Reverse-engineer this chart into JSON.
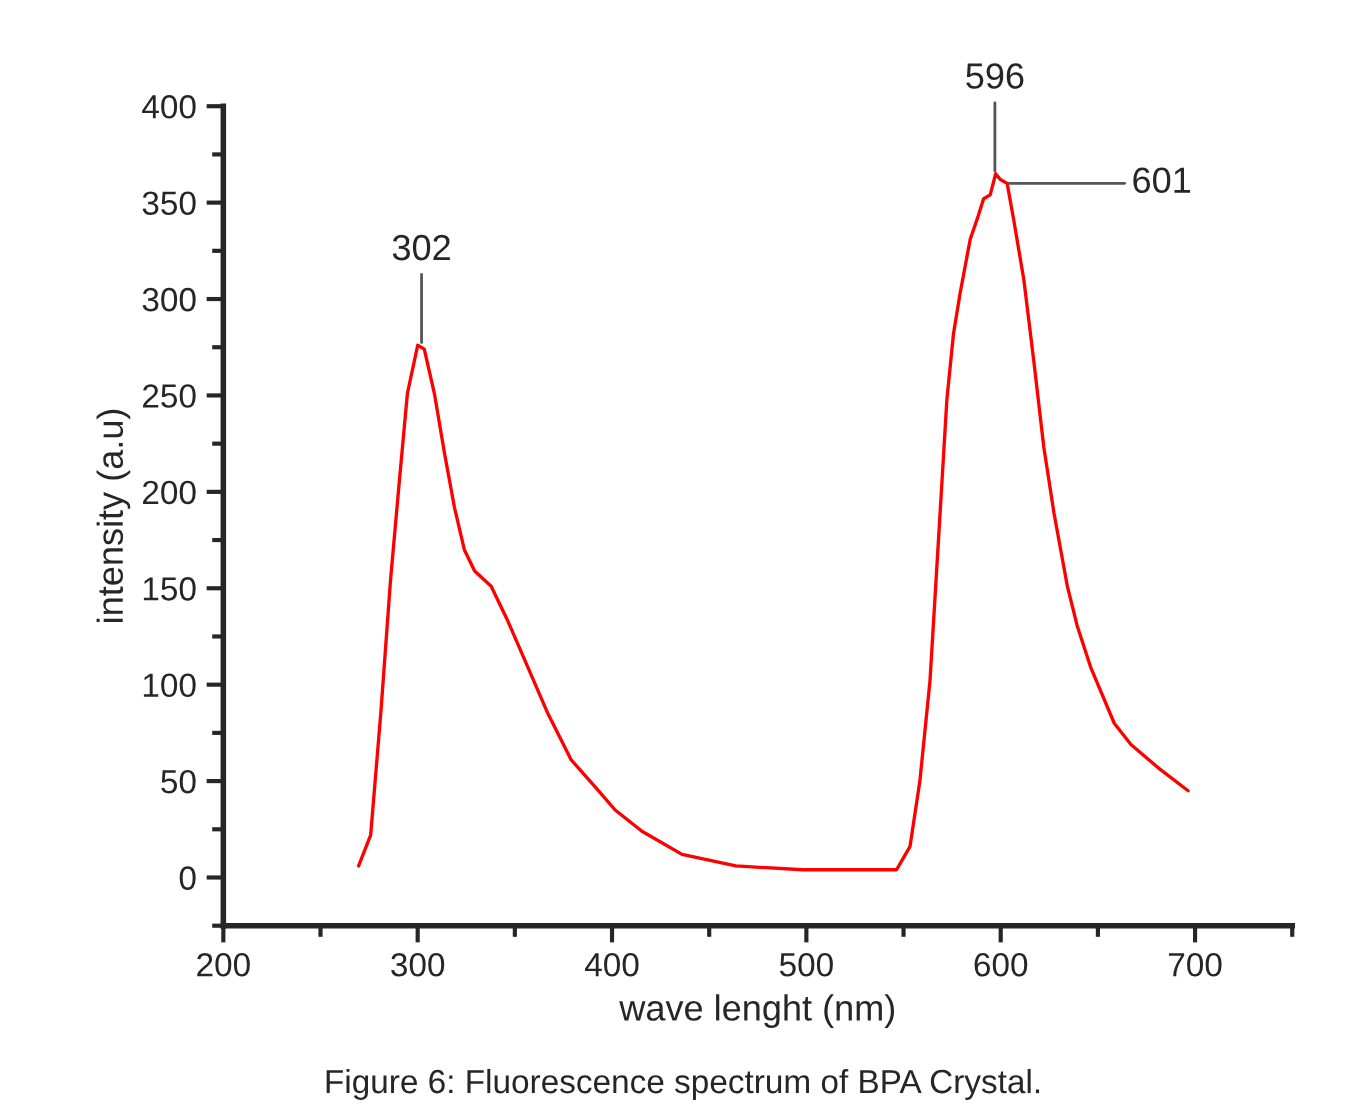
{
  "chart_data": {
    "type": "line",
    "xlabel": "wave lenght (nm)",
    "ylabel": "intensity (a.u)",
    "series": [
      {
        "color": "#ff0000",
        "x": [
          269.6,
          275.8,
          281,
          286,
          290.6,
          294.7,
          300,
          303.4,
          308.6,
          313.8,
          318.9,
          324,
          329.3,
          337.8,
          346.4,
          355,
          367,
          379,
          391.3,
          401.6,
          415.4,
          436,
          463.7,
          498,
          546.4,
          553.3,
          558.4,
          563.6,
          568.8,
          572.3,
          575.7,
          579.1,
          584.3,
          588.4,
          591.2,
          594.6,
          597.4,
          599.8,
          603.3,
          606.7,
          611.9,
          617,
          622.2,
          627.4,
          634.3,
          639.5,
          646.3,
          658.4,
          667,
          680.9,
          696.4
        ],
        "values": [
          6,
          22,
          85,
          154,
          206,
          251,
          276,
          274,
          251,
          220,
          192,
          170,
          159,
          151,
          133,
          113,
          85,
          61,
          47,
          35,
          24,
          12,
          6,
          4,
          4,
          16,
          50,
          102,
          189,
          248,
          282,
          303,
          331,
          343,
          352,
          354,
          365,
          362,
          360,
          341,
          310,
          268,
          223,
          189,
          151,
          130,
          109,
          80,
          69,
          57,
          45
        ]
      }
    ],
    "xlim": [
      200,
      750
    ],
    "xticks": [
      200,
      300,
      400,
      500,
      600,
      700
    ],
    "ylim": [
      -25,
      400
    ],
    "yticks": [
      0,
      50,
      100,
      150,
      200,
      250,
      300,
      350,
      400
    ],
    "grid": false,
    "legend": false,
    "line_style": "solid",
    "marker": "none",
    "annotations": [
      {
        "text": "302",
        "x": 302,
        "y": 276
      },
      {
        "text": "596",
        "x": 597,
        "y": 365
      },
      {
        "text": "601",
        "x": 603,
        "y": 360
      },
      "Figure 6: Fluorescence spectrum of BPA Crystal."
    ]
  }
}
